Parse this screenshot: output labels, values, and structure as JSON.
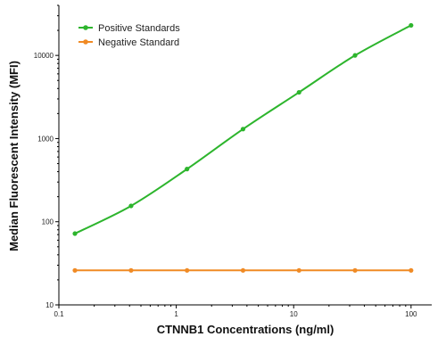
{
  "chart_data": {
    "type": "line",
    "title": "",
    "xlabel": "CTNNB1 Concentrations (ng/ml)",
    "ylabel": "Median Fluorescent Intensity (MFI)",
    "xscale": "log",
    "yscale": "log",
    "xlim": [
      0.1,
      150
    ],
    "ylim": [
      10,
      40000
    ],
    "xticks": [
      0.1,
      1,
      10,
      100
    ],
    "xtick_labels": [
      "0.1",
      "1",
      "10",
      "100"
    ],
    "yticks": [
      10,
      100,
      1000,
      10000
    ],
    "ytick_labels": [
      "10",
      "100",
      "1000",
      "10000"
    ],
    "grid": false,
    "legend_position": "top-left",
    "series": [
      {
        "name": "Positive Standards",
        "color": "#2db52d",
        "x": [
          0.137,
          0.412,
          1.235,
          3.704,
          11.11,
          33.33,
          100
        ],
        "y": [
          72,
          155,
          430,
          1300,
          3600,
          10000,
          23000
        ]
      },
      {
        "name": "Negative Standard",
        "color": "#f08a24",
        "x": [
          0.137,
          0.412,
          1.235,
          3.704,
          11.11,
          33.33,
          100
        ],
        "y": [
          26,
          26,
          26,
          26,
          26,
          26,
          26
        ]
      }
    ]
  }
}
